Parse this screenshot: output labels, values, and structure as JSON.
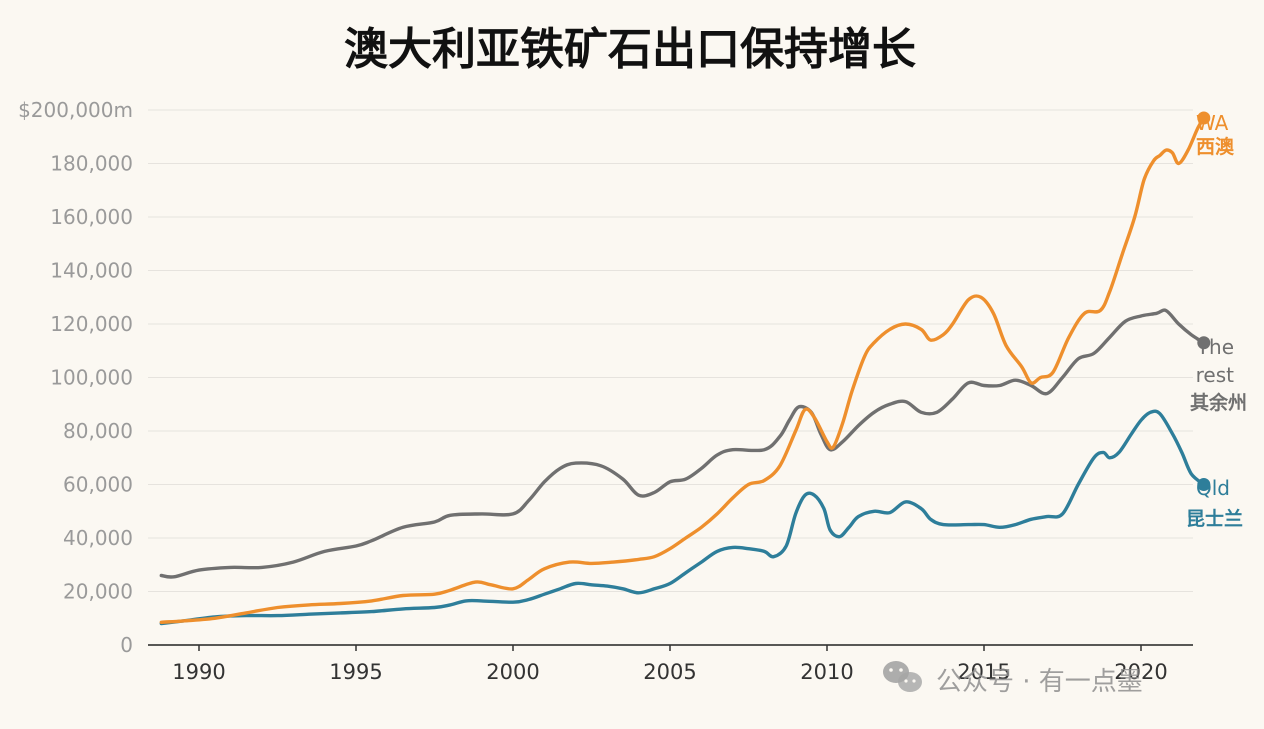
{
  "chart_data": {
    "type": "line",
    "title": "澳大利亚铁矿石出口保持增长",
    "y_unit_prefix": "$",
    "y_unit_suffix": "m",
    "ylim": [
      0,
      200000
    ],
    "yticks": [
      0,
      20000,
      40000,
      60000,
      80000,
      100000,
      120000,
      140000,
      160000,
      180000,
      200000
    ],
    "ytick_labels": [
      "0",
      "20,000",
      "40,000",
      "60,000",
      "80,000",
      "100,000",
      "120,000",
      "140,000",
      "160,000",
      "180,000",
      "$200,000m"
    ],
    "xlim": [
      1988.3,
      2022.0
    ],
    "xticks": [
      1990,
      1995,
      2000,
      2005,
      2010,
      2015,
      2020
    ],
    "xtick_labels": [
      "1990",
      "1995",
      "2000",
      "2005",
      "2010",
      "2015",
      "2020"
    ],
    "grid": true,
    "legend": "direct labels at line ends (right)",
    "series": [
      {
        "name": "WA",
        "name_cn": "西澳",
        "color": "#ee8f2d",
        "points": [
          [
            1988.8,
            8500
          ],
          [
            1989.5,
            9000
          ],
          [
            1990.5,
            10000
          ],
          [
            1991.5,
            12000
          ],
          [
            1992.5,
            14000
          ],
          [
            1993.5,
            15000
          ],
          [
            1994.5,
            15500
          ],
          [
            1995.5,
            16500
          ],
          [
            1996.5,
            18500
          ],
          [
            1997.5,
            19000
          ],
          [
            1998.0,
            20500
          ],
          [
            1998.8,
            23500
          ],
          [
            1999.3,
            22500
          ],
          [
            2000.0,
            21000
          ],
          [
            2000.5,
            24500
          ],
          [
            2001.0,
            28500
          ],
          [
            2001.8,
            31000
          ],
          [
            2002.5,
            30500
          ],
          [
            2003.2,
            31000
          ],
          [
            2004.0,
            32000
          ],
          [
            2004.5,
            33000
          ],
          [
            2005.0,
            36000
          ],
          [
            2005.5,
            40000
          ],
          [
            2006.0,
            44000
          ],
          [
            2006.5,
            49000
          ],
          [
            2007.0,
            55000
          ],
          [
            2007.5,
            60000
          ],
          [
            2008.0,
            61500
          ],
          [
            2008.5,
            67000
          ],
          [
            2009.0,
            80000
          ],
          [
            2009.3,
            88000
          ],
          [
            2009.6,
            85000
          ],
          [
            2010.0,
            76000
          ],
          [
            2010.2,
            74000
          ],
          [
            2010.5,
            83000
          ],
          [
            2010.8,
            95000
          ],
          [
            2011.2,
            108000
          ],
          [
            2011.5,
            113000
          ],
          [
            2012.0,
            118000
          ],
          [
            2012.5,
            120000
          ],
          [
            2013.0,
            118000
          ],
          [
            2013.3,
            114000
          ],
          [
            2013.7,
            116000
          ],
          [
            2014.0,
            120000
          ],
          [
            2014.5,
            129000
          ],
          [
            2014.9,
            130000
          ],
          [
            2015.3,
            124000
          ],
          [
            2015.7,
            112000
          ],
          [
            2016.2,
            104000
          ],
          [
            2016.5,
            98000
          ],
          [
            2016.8,
            100000
          ],
          [
            2017.2,
            102000
          ],
          [
            2017.7,
            115000
          ],
          [
            2018.2,
            124000
          ],
          [
            2018.7,
            125000
          ],
          [
            2019.0,
            132000
          ],
          [
            2019.4,
            146000
          ],
          [
            2019.8,
            160000
          ],
          [
            2020.1,
            174000
          ],
          [
            2020.4,
            181000
          ],
          [
            2020.6,
            183000
          ],
          [
            2020.8,
            185000
          ],
          [
            2021.0,
            184000
          ],
          [
            2021.2,
            180000
          ],
          [
            2021.5,
            185000
          ],
          [
            2021.8,
            193000
          ],
          [
            2022.0,
            197000
          ]
        ]
      },
      {
        "name": "The rest",
        "name_cn": "其余州",
        "color": "#707070",
        "points": [
          [
            1988.8,
            26000
          ],
          [
            1989.2,
            25500
          ],
          [
            1990.0,
            28000
          ],
          [
            1991.0,
            29000
          ],
          [
            1992.0,
            29000
          ],
          [
            1993.0,
            31000
          ],
          [
            1994.0,
            35000
          ],
          [
            1995.0,
            37000
          ],
          [
            1995.5,
            39000
          ],
          [
            1996.5,
            44000
          ],
          [
            1997.5,
            46000
          ],
          [
            1998.0,
            48500
          ],
          [
            1999.0,
            49000
          ],
          [
            2000.0,
            49000
          ],
          [
            2000.5,
            54000
          ],
          [
            2001.0,
            61000
          ],
          [
            2001.5,
            66000
          ],
          [
            2002.0,
            68000
          ],
          [
            2002.8,
            67000
          ],
          [
            2003.5,
            62000
          ],
          [
            2004.0,
            56000
          ],
          [
            2004.5,
            57000
          ],
          [
            2005.0,
            61000
          ],
          [
            2005.5,
            62000
          ],
          [
            2006.0,
            66000
          ],
          [
            2006.5,
            71000
          ],
          [
            2007.0,
            73000
          ],
          [
            2008.0,
            73000
          ],
          [
            2008.5,
            78000
          ],
          [
            2008.8,
            84000
          ],
          [
            2009.1,
            89000
          ],
          [
            2009.5,
            87000
          ],
          [
            2009.8,
            79000
          ],
          [
            2010.1,
            73000
          ],
          [
            2010.5,
            76000
          ],
          [
            2011.0,
            82000
          ],
          [
            2011.5,
            87000
          ],
          [
            2012.0,
            90000
          ],
          [
            2012.5,
            91000
          ],
          [
            2013.0,
            87000
          ],
          [
            2013.5,
            87000
          ],
          [
            2014.0,
            92000
          ],
          [
            2014.5,
            98000
          ],
          [
            2015.0,
            97000
          ],
          [
            2015.5,
            97000
          ],
          [
            2016.0,
            99000
          ],
          [
            2016.5,
            97000
          ],
          [
            2017.0,
            94000
          ],
          [
            2017.5,
            100000
          ],
          [
            2018.0,
            107000
          ],
          [
            2018.5,
            109000
          ],
          [
            2019.0,
            115000
          ],
          [
            2019.5,
            121000
          ],
          [
            2020.0,
            123000
          ],
          [
            2020.5,
            124000
          ],
          [
            2020.8,
            125000
          ],
          [
            2021.2,
            120000
          ],
          [
            2021.6,
            116000
          ],
          [
            2022.0,
            113000
          ]
        ]
      },
      {
        "name": "Qld",
        "name_cn": "昆士兰",
        "color": "#2e7e9a",
        "points": [
          [
            1988.8,
            8000
          ],
          [
            1989.5,
            9000
          ],
          [
            1990.5,
            10500
          ],
          [
            1991.5,
            11000
          ],
          [
            1992.5,
            11000
          ],
          [
            1993.5,
            11500
          ],
          [
            1994.5,
            12000
          ],
          [
            1995.5,
            12500
          ],
          [
            1996.5,
            13500
          ],
          [
            1997.5,
            14000
          ],
          [
            1998.0,
            15000
          ],
          [
            1998.5,
            16500
          ],
          [
            1999.0,
            16500
          ],
          [
            2000.0,
            16000
          ],
          [
            2000.5,
            17000
          ],
          [
            2001.0,
            19000
          ],
          [
            2001.5,
            21000
          ],
          [
            2002.0,
            23000
          ],
          [
            2002.5,
            22500
          ],
          [
            2003.0,
            22000
          ],
          [
            2003.5,
            21000
          ],
          [
            2004.0,
            19500
          ],
          [
            2004.5,
            21000
          ],
          [
            2005.0,
            23000
          ],
          [
            2005.5,
            27000
          ],
          [
            2006.0,
            31000
          ],
          [
            2006.5,
            35000
          ],
          [
            2007.0,
            36500
          ],
          [
            2007.5,
            36000
          ],
          [
            2008.0,
            35000
          ],
          [
            2008.3,
            33000
          ],
          [
            2008.7,
            37000
          ],
          [
            2009.0,
            49000
          ],
          [
            2009.3,
            56000
          ],
          [
            2009.6,
            56000
          ],
          [
            2009.9,
            51000
          ],
          [
            2010.1,
            43000
          ],
          [
            2010.4,
            40500
          ],
          [
            2010.7,
            44000
          ],
          [
            2011.0,
            48000
          ],
          [
            2011.5,
            50000
          ],
          [
            2012.0,
            49500
          ],
          [
            2012.5,
            53500
          ],
          [
            2013.0,
            51000
          ],
          [
            2013.3,
            47000
          ],
          [
            2013.7,
            45000
          ],
          [
            2014.5,
            45000
          ],
          [
            2015.0,
            45000
          ],
          [
            2015.5,
            44000
          ],
          [
            2016.0,
            45000
          ],
          [
            2016.5,
            47000
          ],
          [
            2017.0,
            48000
          ],
          [
            2017.5,
            49000
          ],
          [
            2018.0,
            60000
          ],
          [
            2018.5,
            70000
          ],
          [
            2018.8,
            72000
          ],
          [
            2019.0,
            70000
          ],
          [
            2019.3,
            72000
          ],
          [
            2019.7,
            79000
          ],
          [
            2020.0,
            84000
          ],
          [
            2020.3,
            87000
          ],
          [
            2020.6,
            86500
          ],
          [
            2021.0,
            79000
          ],
          [
            2021.3,
            72000
          ],
          [
            2021.6,
            64000
          ],
          [
            2022.0,
            60000
          ]
        ]
      }
    ]
  },
  "watermark": {
    "text": "公众号 · 有一点墨",
    "icon": "wechat-icon"
  }
}
